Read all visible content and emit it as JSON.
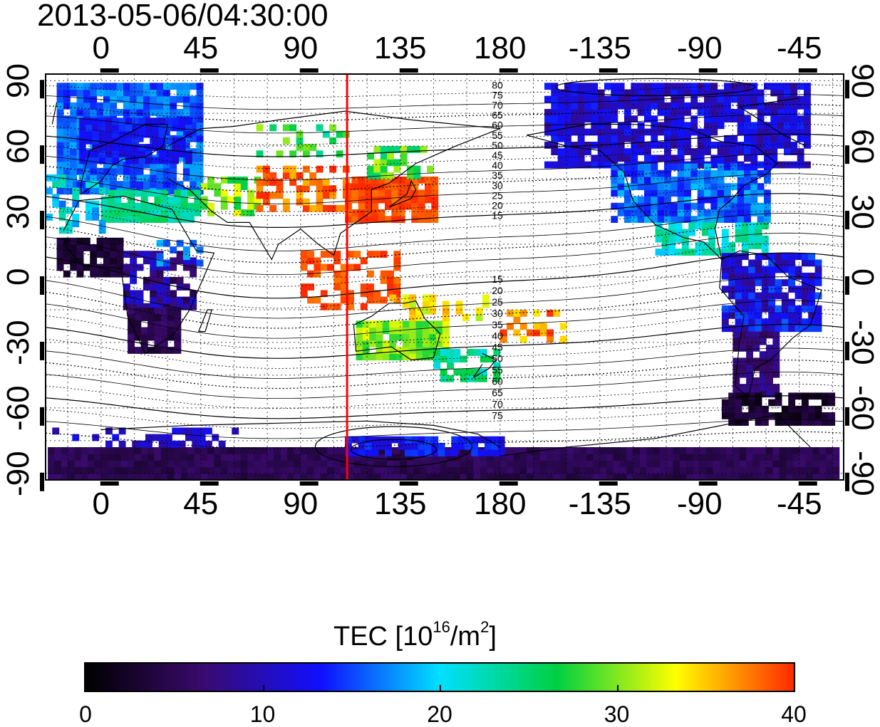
{
  "timestamp": "2013-05-06/04:30:00",
  "map": {
    "lon_ticks_top": [
      "0",
      "45",
      "90",
      "135",
      "180",
      "-135",
      "-90",
      "-45"
    ],
    "lon_ticks_bottom": [
      "0",
      "45",
      "90",
      "135",
      "180",
      "-135",
      "-90",
      "-45"
    ],
    "lat_ticks_left": [
      "90",
      "60",
      "30",
      "0",
      "-30",
      "-60",
      "-90"
    ],
    "lat_ticks_right": [
      "90",
      "60",
      "30",
      "0",
      "-30",
      "-60",
      "-90"
    ],
    "contour_labels_north": [
      "80",
      "75",
      "70",
      "65",
      "60",
      "55",
      "50",
      "45",
      "40",
      "35",
      "30",
      "25",
      "20",
      "15"
    ],
    "contour_labels_south": [
      "15",
      "20",
      "25",
      "30",
      "35",
      "40",
      "45",
      "50",
      "55",
      "60",
      "65",
      "70",
      "75"
    ],
    "marker_line_longitude": 111,
    "marker_line_color": "#ff0000",
    "grid": "dotted"
  },
  "colorbar": {
    "title_main": "TEC  [10",
    "title_exp1": "16",
    "title_mid": "/m",
    "title_exp2": "2",
    "title_end": "]",
    "min": 0,
    "max": 40,
    "tick_labels": [
      "0",
      "10",
      "20",
      "30",
      "40"
    ],
    "colormap": [
      "#000000",
      "#3a0a6e",
      "#1010ff",
      "#00e0ff",
      "#00d040",
      "#ffff00",
      "#ff2a00"
    ]
  }
}
